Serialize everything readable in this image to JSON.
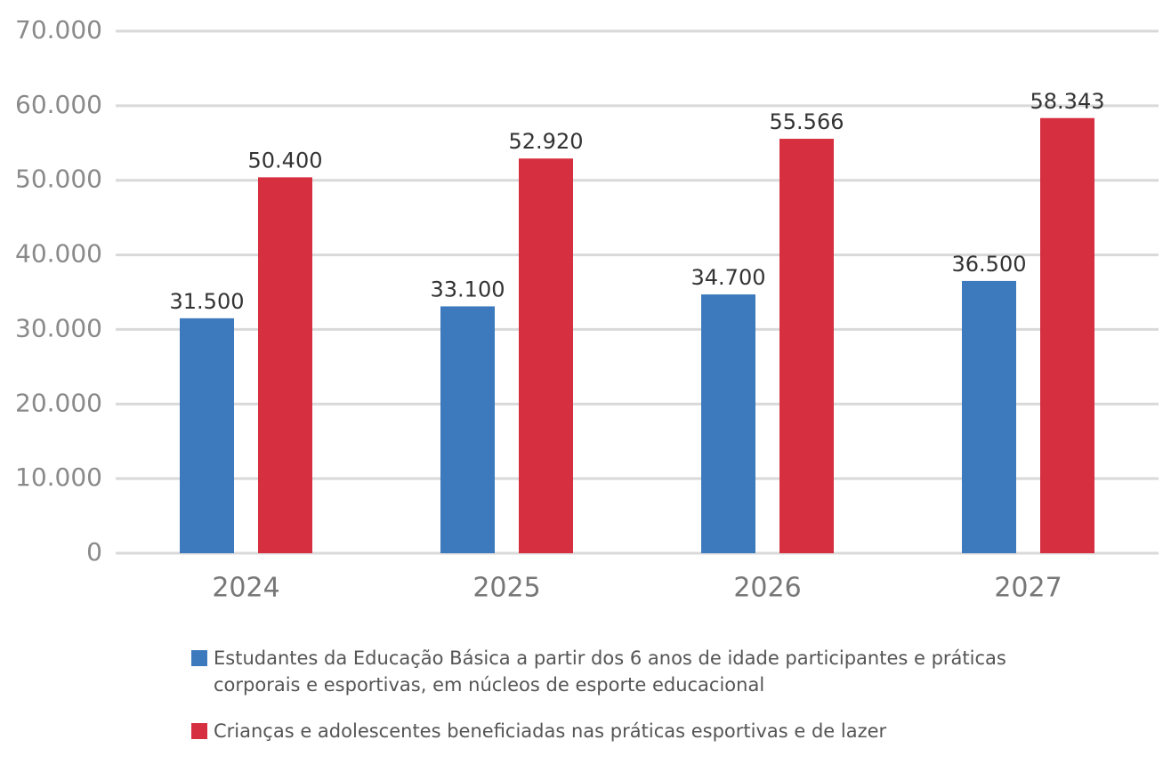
{
  "chart_data": {
    "type": "bar",
    "categories": [
      "2024",
      "2025",
      "2026",
      "2027"
    ],
    "series": [
      {
        "name": "Estudantes da Educação Básica a partir dos 6 anos de idade participantes e práticas corporais e esportivas, em núcleos de esporte educacional",
        "color": "#3d7abd",
        "values": [
          31500,
          33100,
          34700,
          36500
        ],
        "value_labels": [
          "31.500",
          "33.100",
          "34.700",
          "36.500"
        ]
      },
      {
        "name": "Crianças e adolescentes beneficiadas nas práticas esportivas e de lazer",
        "color": "#d62f3f",
        "values": [
          50400,
          52920,
          55566,
          58343
        ],
        "value_labels": [
          "50.400",
          "52.920",
          "55.566",
          "58.343"
        ]
      }
    ],
    "ylim": [
      0,
      70000
    ],
    "yticks": [
      0,
      {
        "value": 10000,
        "label": "10.000"
      },
      {
        "value": 20000,
        "label": "20.000"
      },
      {
        "value": 30000,
        "label": "30.000"
      },
      {
        "value": 40000,
        "label": "40.000"
      },
      {
        "value": 50000,
        "label": "50.000"
      },
      {
        "value": 60000,
        "label": "60.000"
      },
      {
        "value": 70000,
        "label": "70.000"
      }
    ],
    "grid": true,
    "legend": "bottom"
  }
}
